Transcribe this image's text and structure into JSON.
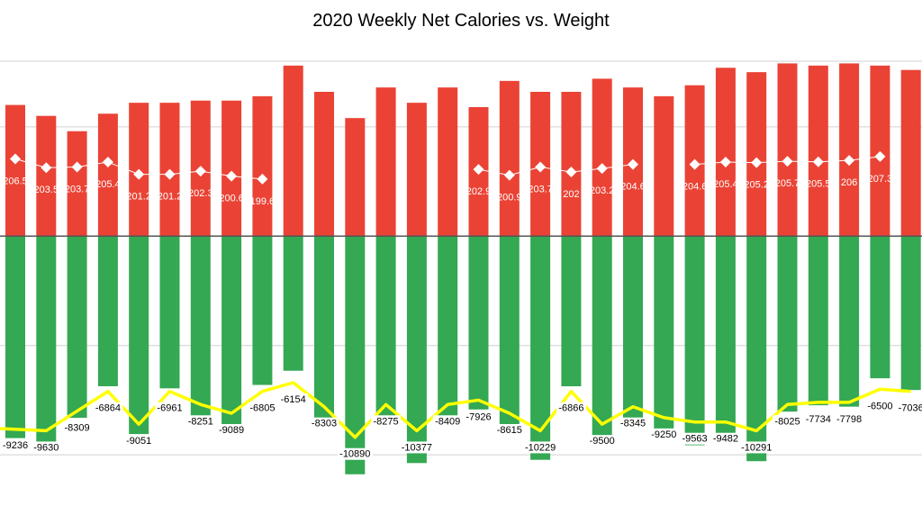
{
  "chart_data": {
    "type": "bar",
    "title": "2020 Weekly Net Calories vs. Weight",
    "xlabel": "",
    "ylabel": "",
    "grid": true,
    "legend": "none",
    "series": [
      {
        "kind": "bar-negative",
        "values": [
          -9236,
          -9630,
          -8309,
          -6864,
          -9051,
          -6961,
          -8251,
          -9089,
          -6805,
          -6154,
          -8303,
          -10890,
          -8275,
          -10377,
          -8409,
          -7926,
          -8615,
          -10229,
          -6866,
          -9500,
          -8345,
          -9250,
          -9563,
          -9482,
          -10291,
          -8025,
          -7734,
          -7798,
          -6500,
          -7036
        ],
        "labels": [
          "-9236",
          "-9630",
          "-8309",
          "-6864",
          "-9051",
          "-6961",
          "-8251",
          "-9089",
          "-6805",
          "-6154",
          "-8303",
          "-10890",
          "-8275",
          "-10377",
          "-8409",
          "-7926",
          "-8615",
          "-10229",
          "-6866",
          "-9500",
          "-8345",
          "-9250",
          "-9563",
          "-9482",
          "-10291",
          "-8025",
          "-7734",
          "-7798",
          "-6500",
          "-7036"
        ],
        "color": "#34a853"
      },
      {
        "kind": "bar-positive",
        "values": [
          6000,
          5500,
          4800,
          5600,
          6100,
          6100,
          6200,
          6200,
          6400,
          7800,
          6600,
          5400,
          6800,
          6100,
          6800,
          5900,
          7100,
          6600,
          6600,
          7200,
          6800,
          6400,
          6900,
          7700,
          7500,
          7900,
          7800,
          7900,
          7800,
          7600
        ],
        "color": "#ea4335"
      },
      {
        "kind": "line",
        "values": [
          -8800,
          -8900,
          -8000,
          -7100,
          -8600,
          -7100,
          -7700,
          -8100,
          -7100,
          -6700,
          -7800,
          -9200,
          -7700,
          -8900,
          -7700,
          -7500,
          -8100,
          -8900,
          -7100,
          -8600,
          -7800,
          -8300,
          -8500,
          -8500,
          -8900,
          -7700,
          -7600,
          -7600,
          -7000,
          -7100
        ],
        "color": "#ffff00"
      },
      {
        "kind": "weight",
        "values": [
          206.5,
          203.5,
          203.7,
          205.4,
          201.2,
          201.2,
          202.3,
          200.6,
          199.6,
          null,
          null,
          null,
          null,
          null,
          null,
          202.9,
          200.9,
          203.7,
          202,
          203.2,
          204.6,
          null,
          204.6,
          205.4,
          205.2,
          205.7,
          205.5,
          206,
          207.3,
          null
        ],
        "labels": [
          "206.5",
          "203.5",
          "203.7",
          "205.4",
          "201.2",
          "201.2",
          "202.3",
          "200.6",
          "199.6",
          "",
          "",
          "",
          "",
          "",
          "",
          "202.9",
          "200.9",
          "203.7",
          "202",
          "203.2",
          "204.6",
          "",
          "204.6",
          "205.4",
          "205.2",
          "205.7",
          "205.5",
          "206",
          "207.3",
          ""
        ],
        "color": "#ffffff",
        "range": [
          180,
          240
        ]
      }
    ],
    "ylim": [
      -13000,
      8000
    ],
    "gridlines": [
      -10000,
      -5000,
      0,
      5000
    ]
  }
}
